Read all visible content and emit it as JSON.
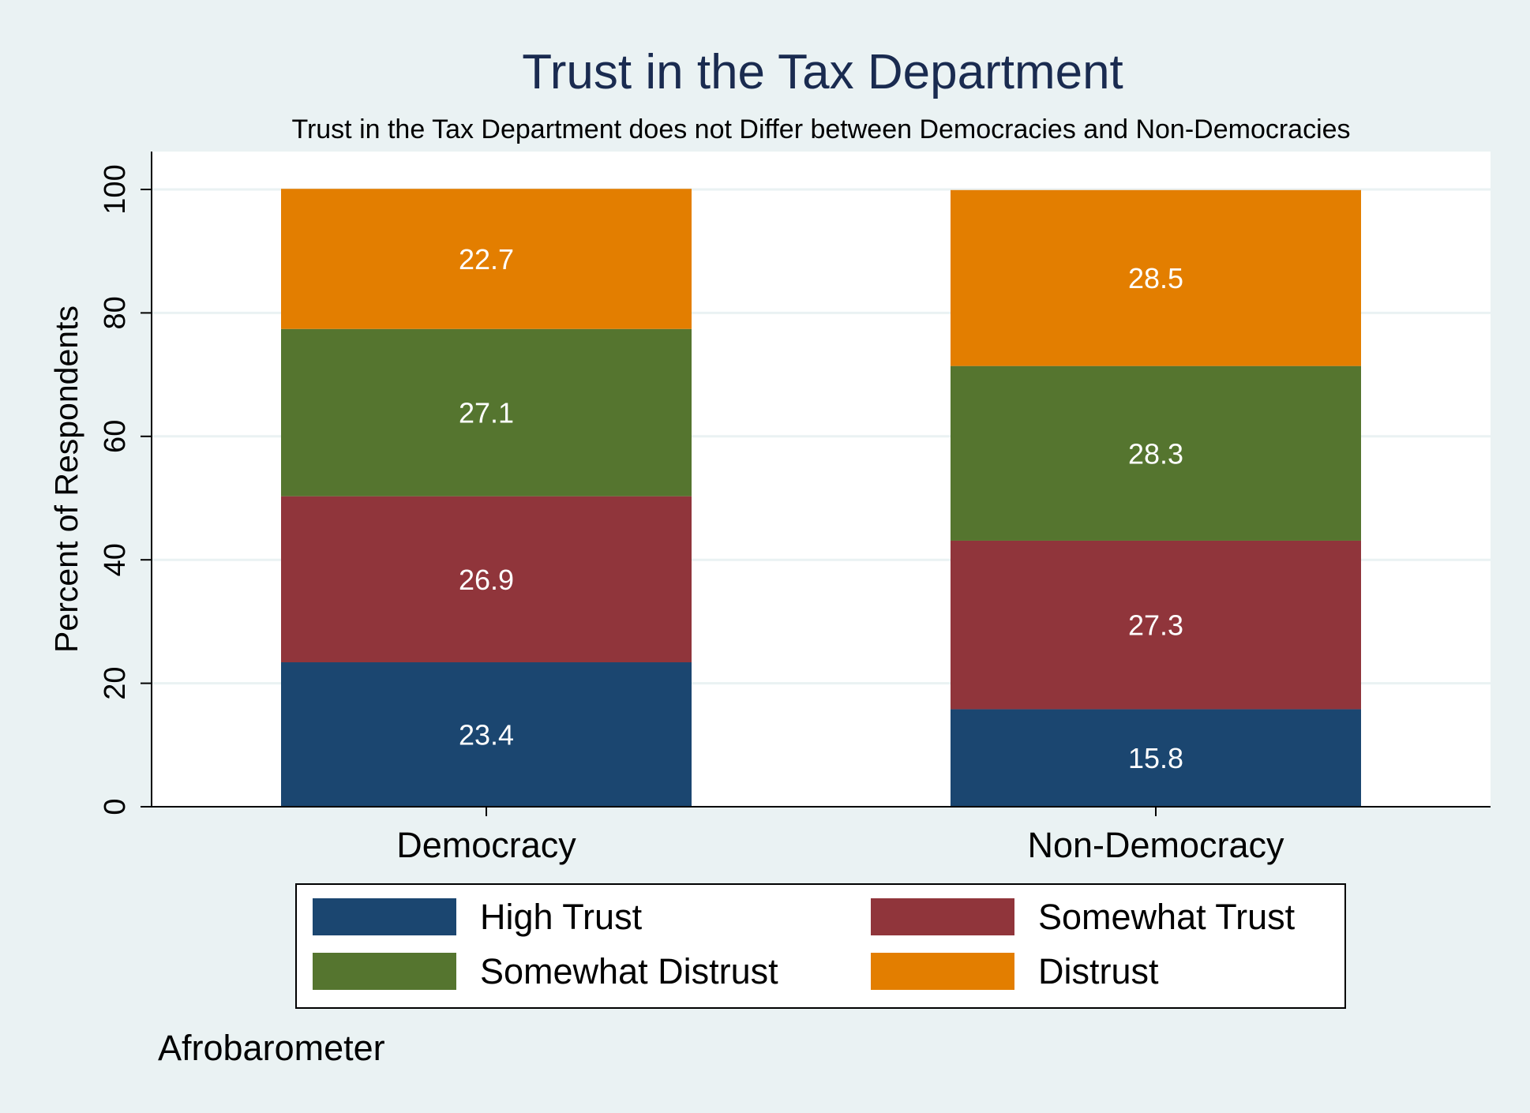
{
  "chart_data": {
    "type": "bar",
    "stacked": true,
    "title": "Trust in the Tax Department",
    "subtitle": "Trust in the Tax Department does not Differ between Democracies and Non-Democracies",
    "xlabel": "",
    "ylabel": "Percent of Respondents",
    "ylim": [
      0,
      100
    ],
    "yticks": [
      0,
      20,
      40,
      60,
      80,
      100
    ],
    "grid": true,
    "legend_position": "bottom",
    "categories": [
      "Democracy",
      "Non-Democracy"
    ],
    "series": [
      {
        "name": "High Trust",
        "color": "#1b4670",
        "values": [
          23.4,
          15.8
        ],
        "labels": [
          "23.4",
          "15.8"
        ]
      },
      {
        "name": "Somewhat Trust",
        "color": "#90353b",
        "values": [
          26.9,
          27.3
        ],
        "labels": [
          "26.9",
          "27.3"
        ]
      },
      {
        "name": "Somewhat Distrust",
        "color": "#55752f",
        "values": [
          27.1,
          28.3
        ],
        "labels": [
          "27.1",
          "28.3"
        ]
      },
      {
        "name": "Distrust",
        "color": "#e37e00",
        "values": [
          22.7,
          28.5
        ],
        "labels": [
          "22.7",
          "28.5"
        ]
      }
    ],
    "note": "Afrobarometer"
  }
}
